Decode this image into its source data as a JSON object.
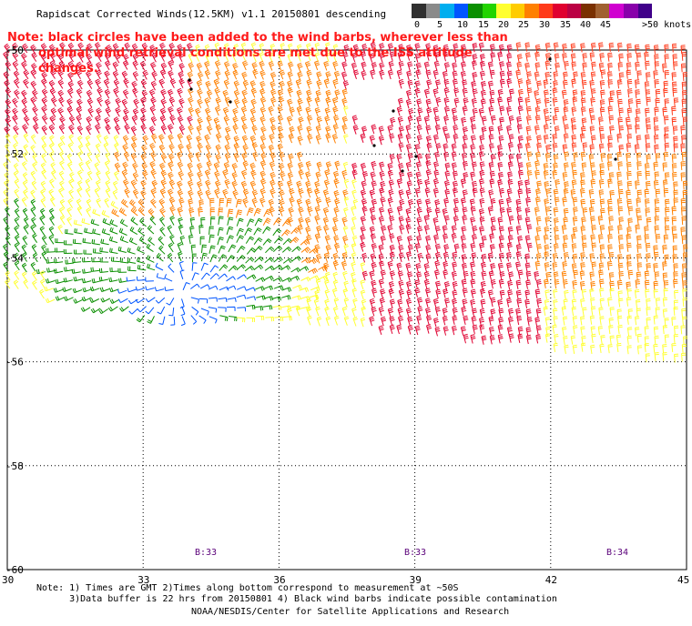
{
  "title": "Rapidscat Corrected Winds(12.5KM) v1.1 20150801 descending",
  "note": {
    "line1": "Note: black circles have been added to the wind barbs, wherever less than",
    "line2": "optimal wind retrieval conditions are met due to the ISS attitude changes."
  },
  "legend": {
    "colors": [
      "#303030",
      "#8a8a8a",
      "#00aeef",
      "#0055ff",
      "#0a8f00",
      "#22d400",
      "#ffff30",
      "#ffcc00",
      "#ff8000",
      "#ff3a1a",
      "#e00030",
      "#bb0044",
      "#7a3000",
      "#a06030",
      "#d000d0",
      "#8800aa",
      "#40008a"
    ],
    "labels": [
      "0",
      "5",
      "10",
      "15",
      "20",
      "25",
      "30",
      "35",
      "40",
      "45",
      ">50 knots"
    ]
  },
  "axes": {
    "lat_labels": [
      "-50",
      "-52",
      "-54",
      "-56",
      "-58",
      "-60"
    ],
    "lon_labels": [
      "30",
      "33",
      "36",
      "39",
      "42",
      "45"
    ]
  },
  "pass_labels": [
    "B:33",
    "B:33",
    "B:34"
  ],
  "footnote": {
    "line1": "Note: 1) Times are GMT 2)Times along bottom correspond to measurement at ~50S",
    "line2": "      3)Data buffer is 22 hrs from 20150801 4) Black wind barbs indicate possible contamination"
  },
  "credit": "NOAA/NESDIS/Center for Satellite Applications and Research",
  "colors": {
    "note_red": "#ff1a1a",
    "pass_purple": "#5a007a"
  }
}
